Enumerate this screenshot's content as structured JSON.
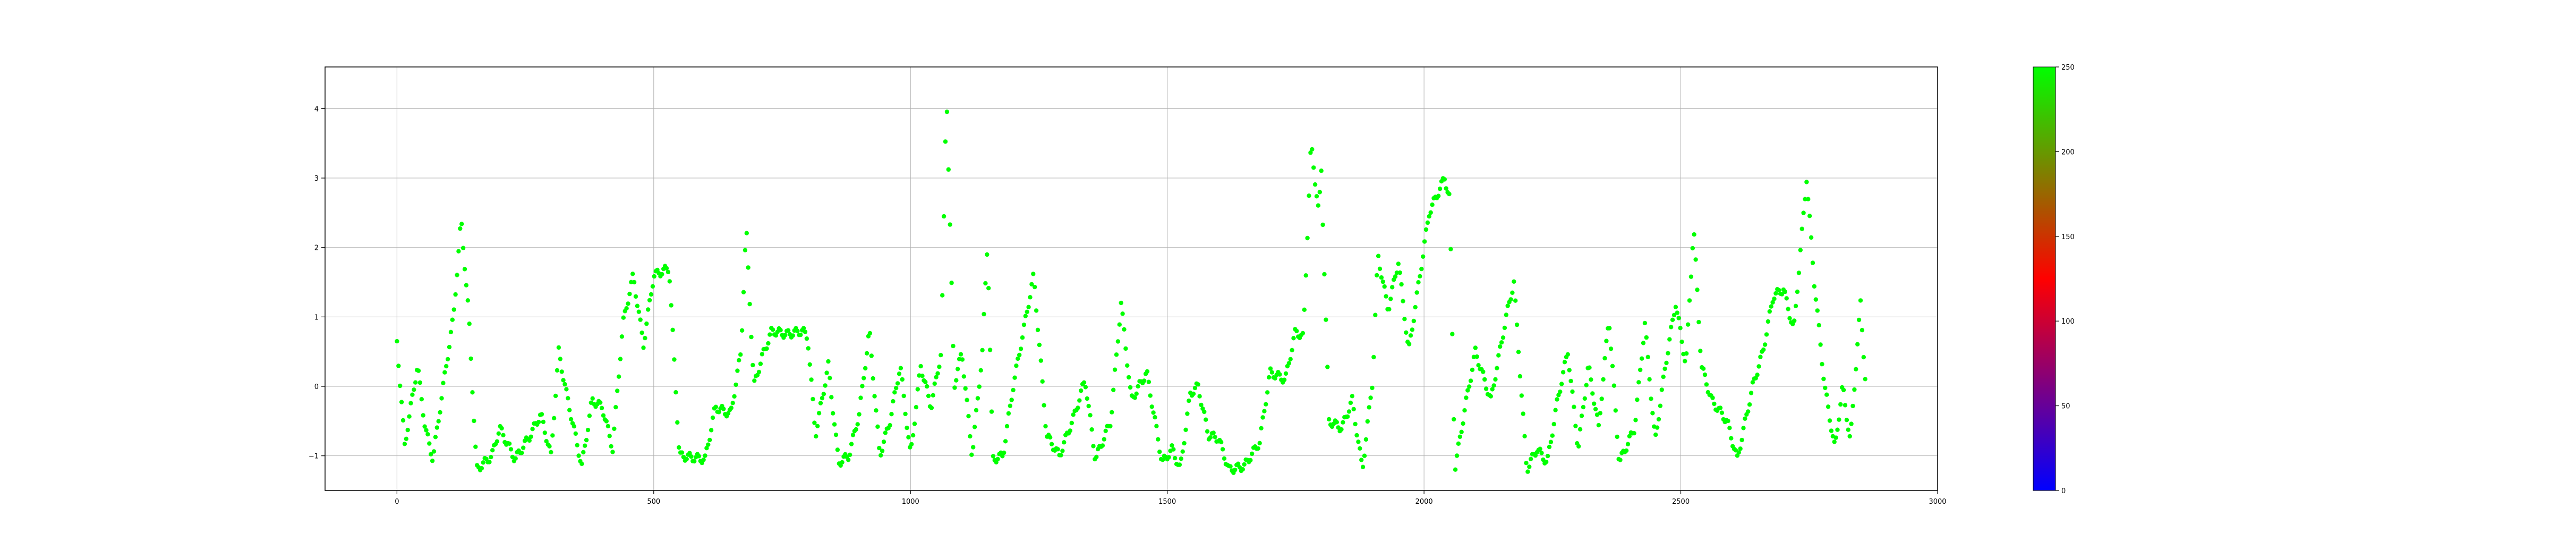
{
  "chart_data": {
    "type": "scatter",
    "title": "",
    "xlabel": "",
    "ylabel": "",
    "xlim": [
      -140,
      3000
    ],
    "ylim": [
      -1.5,
      4.6
    ],
    "grid": true,
    "legend": "none",
    "xticks": [
      0,
      500,
      1000,
      1500,
      2000,
      2500,
      3000
    ],
    "xtick_labels": [
      "0",
      "500",
      "1000",
      "1500",
      "2000",
      "2500",
      "3000"
    ],
    "yticks": [
      -1,
      0,
      1,
      2,
      3,
      4
    ],
    "ytick_labels": [
      "−1",
      "0",
      "1",
      "2",
      "3",
      "4"
    ],
    "point_color": "#00ff00",
    "x_range": [
      0,
      2860
    ],
    "profile": [
      [
        0,
        0.65
      ],
      [
        15,
        -0.85
      ],
      [
        40,
        0.3
      ],
      [
        55,
        -0.6
      ],
      [
        70,
        -1.05
      ],
      [
        90,
        0.0
      ],
      [
        110,
        1.0
      ],
      [
        125,
        2.4
      ],
      [
        140,
        1.0
      ],
      [
        155,
        -1.2
      ],
      [
        185,
        -1.0
      ],
      [
        200,
        -0.6
      ],
      [
        230,
        -1.05
      ],
      [
        260,
        -0.7
      ],
      [
        280,
        -0.4
      ],
      [
        300,
        -1.0
      ],
      [
        315,
        0.5
      ],
      [
        330,
        -0.1
      ],
      [
        360,
        -1.15
      ],
      [
        380,
        -0.2
      ],
      [
        400,
        -0.3
      ],
      [
        420,
        -0.9
      ],
      [
        440,
        0.9
      ],
      [
        460,
        1.6
      ],
      [
        480,
        0.6
      ],
      [
        500,
        1.6
      ],
      [
        530,
        1.7
      ],
      [
        550,
        -1.0
      ],
      [
        600,
        -1.05
      ],
      [
        620,
        -0.3
      ],
      [
        650,
        -0.4
      ],
      [
        670,
        0.5
      ],
      [
        680,
        2.3
      ],
      [
        695,
        0.0
      ],
      [
        710,
        0.4
      ],
      [
        730,
        0.8
      ],
      [
        760,
        0.75
      ],
      [
        790,
        0.8
      ],
      [
        800,
        0.7
      ],
      [
        815,
        -0.7
      ],
      [
        840,
        0.3
      ],
      [
        860,
        -1.1
      ],
      [
        880,
        -1.0
      ],
      [
        900,
        -0.4
      ],
      [
        920,
        0.8
      ],
      [
        940,
        -1.0
      ],
      [
        960,
        -0.5
      ],
      [
        980,
        0.3
      ],
      [
        1000,
        -1.0
      ],
      [
        1020,
        0.3
      ],
      [
        1040,
        -0.3
      ],
      [
        1060,
        0.5
      ],
      [
        1070,
        4.3
      ],
      [
        1085,
        0.0
      ],
      [
        1100,
        0.5
      ],
      [
        1120,
        -1.0
      ],
      [
        1140,
        0.5
      ],
      [
        1150,
        2.1
      ],
      [
        1160,
        -1.05
      ],
      [
        1180,
        -1.0
      ],
      [
        1200,
        0.0
      ],
      [
        1240,
        1.6
      ],
      [
        1265,
        -0.7
      ],
      [
        1290,
        -1.0
      ],
      [
        1320,
        -0.4
      ],
      [
        1340,
        0.1
      ],
      [
        1360,
        -1.05
      ],
      [
        1390,
        -0.5
      ],
      [
        1410,
        1.2
      ],
      [
        1430,
        -0.2
      ],
      [
        1460,
        0.2
      ],
      [
        1490,
        -1.1
      ],
      [
        1510,
        -0.9
      ],
      [
        1525,
        -1.2
      ],
      [
        1545,
        -0.1
      ],
      [
        1560,
        0.0
      ],
      [
        1580,
        -0.7
      ],
      [
        1600,
        -0.75
      ],
      [
        1620,
        -1.2
      ],
      [
        1650,
        -1.15
      ],
      [
        1680,
        -0.8
      ],
      [
        1700,
        0.2
      ],
      [
        1730,
        0.1
      ],
      [
        1750,
        0.8
      ],
      [
        1765,
        0.7
      ],
      [
        1780,
        3.5
      ],
      [
        1795,
        2.5
      ],
      [
        1800,
        3.1
      ],
      [
        1815,
        -0.5
      ],
      [
        1840,
        -0.6
      ],
      [
        1860,
        -0.2
      ],
      [
        1880,
        -1.2
      ],
      [
        1900,
        0.1
      ],
      [
        1910,
        1.9
      ],
      [
        1930,
        1.1
      ],
      [
        1950,
        1.8
      ],
      [
        1970,
        0.5
      ],
      [
        1990,
        1.5
      ],
      [
        2010,
        2.5
      ],
      [
        2040,
        3.0
      ],
      [
        2050,
        2.7
      ],
      [
        2060,
        -1.2
      ],
      [
        2080,
        -0.3
      ],
      [
        2100,
        0.5
      ],
      [
        2130,
        -0.2
      ],
      [
        2160,
        1.0
      ],
      [
        2175,
        1.5
      ],
      [
        2200,
        -1.2
      ],
      [
        2220,
        -0.9
      ],
      [
        2240,
        -1.1
      ],
      [
        2260,
        -0.2
      ],
      [
        2280,
        0.5
      ],
      [
        2300,
        -0.9
      ],
      [
        2320,
        0.3
      ],
      [
        2340,
        -0.6
      ],
      [
        2360,
        1.0
      ],
      [
        2380,
        -1.1
      ],
      [
        2410,
        -0.6
      ],
      [
        2430,
        0.9
      ],
      [
        2450,
        -0.8
      ],
      [
        2470,
        0.3
      ],
      [
        2490,
        1.2
      ],
      [
        2510,
        0.3
      ],
      [
        2525,
        2.3
      ],
      [
        2540,
        0.3
      ],
      [
        2560,
        -0.2
      ],
      [
        2590,
        -0.5
      ],
      [
        2610,
        -1.05
      ],
      [
        2640,
        0.0
      ],
      [
        2660,
        0.5
      ],
      [
        2680,
        1.3
      ],
      [
        2700,
        1.4
      ],
      [
        2720,
        0.8
      ],
      [
        2745,
        3.0
      ],
      [
        2760,
        1.5
      ],
      [
        2780,
        0.0
      ],
      [
        2800,
        -0.9
      ],
      [
        2815,
        0.0
      ],
      [
        2830,
        -0.8
      ],
      [
        2850,
        1.2
      ],
      [
        2860,
        0.0
      ]
    ]
  },
  "colorbar": {
    "ticks": [
      0,
      50,
      100,
      150,
      200,
      250
    ],
    "tick_labels": [
      "0",
      "50",
      "100",
      "150",
      "200",
      "250"
    ],
    "range": [
      0,
      250
    ],
    "gradient": [
      "#0000ff",
      "#ff0000",
      "#00ff00"
    ]
  }
}
